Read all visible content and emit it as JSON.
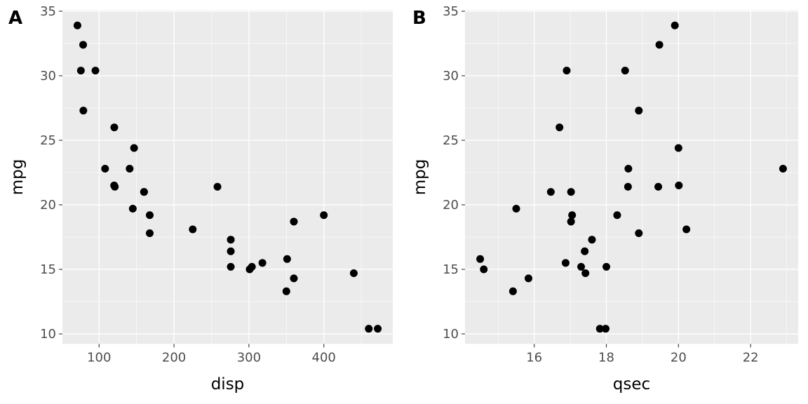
{
  "chart_data": [
    {
      "type": "scatter",
      "tag": "A",
      "xlabel": "disp",
      "ylabel": "mpg",
      "xlim": [
        51.05,
        492.05
      ],
      "ylim": [
        9.225,
        35.075
      ],
      "xticks": [
        100,
        200,
        300,
        400
      ],
      "xminor": [
        150,
        250,
        350,
        450
      ],
      "yticks": [
        10,
        15,
        20,
        25,
        30,
        35
      ],
      "yminor": [
        12.5,
        17.5,
        22.5,
        27.5,
        32.5
      ],
      "grid": true,
      "x": [
        160,
        160,
        108,
        258,
        360,
        225,
        360,
        146.7,
        140.8,
        167.6,
        167.6,
        275.8,
        275.8,
        275.8,
        472,
        460,
        440,
        78.7,
        75.7,
        71.1,
        120.1,
        318,
        304,
        350,
        400,
        79,
        120.3,
        95.1,
        351,
        145,
        301,
        121
      ],
      "y": [
        21,
        21,
        22.8,
        21.4,
        18.7,
        18.1,
        14.3,
        24.4,
        22.8,
        19.2,
        17.8,
        16.4,
        17.3,
        15.2,
        10.4,
        10.4,
        14.7,
        32.4,
        30.4,
        33.9,
        21.5,
        15.5,
        15.2,
        13.3,
        19.2,
        27.3,
        26,
        30.4,
        15.8,
        19.7,
        15,
        21.4
      ]
    },
    {
      "type": "scatter",
      "tag": "B",
      "xlabel": "qsec",
      "ylabel": "mpg",
      "xlim": [
        14.08,
        23.32
      ],
      "ylim": [
        9.225,
        35.075
      ],
      "xticks": [
        16,
        18,
        20,
        22
      ],
      "xminor": [
        15,
        17,
        19,
        21,
        23
      ],
      "yticks": [
        10,
        15,
        20,
        25,
        30,
        35
      ],
      "yminor": [
        12.5,
        17.5,
        22.5,
        27.5,
        32.5
      ],
      "grid": true,
      "x": [
        16.46,
        17.02,
        18.61,
        19.44,
        17.02,
        20.22,
        15.84,
        20,
        22.9,
        18.3,
        18.9,
        17.4,
        17.6,
        18,
        17.98,
        17.82,
        17.42,
        19.47,
        18.52,
        19.9,
        20.01,
        16.87,
        17.3,
        15.41,
        17.05,
        18.9,
        16.7,
        16.9,
        14.5,
        15.5,
        14.6,
        18.6
      ],
      "y": [
        21,
        21,
        22.8,
        21.4,
        18.7,
        18.1,
        14.3,
        24.4,
        22.8,
        19.2,
        17.8,
        16.4,
        17.3,
        15.2,
        10.4,
        10.4,
        14.7,
        32.4,
        30.4,
        33.9,
        21.5,
        15.5,
        15.2,
        13.3,
        19.2,
        27.3,
        26,
        30.4,
        15.8,
        19.7,
        15,
        21.4
      ]
    }
  ]
}
